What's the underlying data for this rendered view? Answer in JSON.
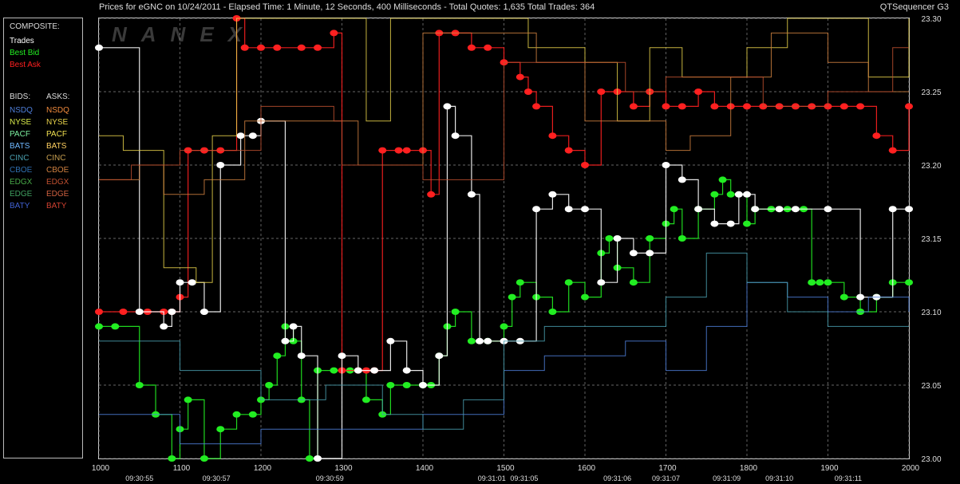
{
  "header": {
    "title": "Prices for  eGNC  on  10/24/2011  -  Elapsed Time: 1 Minute, 12 Seconds, 400 Milliseconds  -  Total Quotes: 1,635  Total Trades: 364",
    "app_name": "QTSequencer G3",
    "watermark": "NANEX"
  },
  "legend": {
    "composite_label": "COMPOSITE:",
    "trades": "Trades",
    "best_bid": "Best Bid",
    "best_ask": "Best Ask",
    "bids_label": "BIDS:",
    "asks_label": "ASKS:",
    "exchanges": [
      {
        "bid": "NSDQ",
        "ask": "NSDQ",
        "bid_color": "#4f7fd9",
        "ask_color": "#f08a3c"
      },
      {
        "bid": "NYSE",
        "ask": "NYSE",
        "bid_color": "#d7e84a",
        "ask_color": "#e8d24a"
      },
      {
        "bid": "PACF",
        "ask": "PACF",
        "bid_color": "#7cf0a0",
        "ask_color": "#f0e050"
      },
      {
        "bid": "BATS",
        "ask": "BATS",
        "bid_color": "#6fb8ff",
        "ask_color": "#ffd060"
      },
      {
        "bid": "CINC",
        "ask": "CINC",
        "bid_color": "#4aa0b0",
        "ask_color": "#c8a050"
      },
      {
        "bid": "CBOE",
        "ask": "CBOE",
        "bid_color": "#2f6fb0",
        "ask_color": "#d08040"
      },
      {
        "bid": "EDGX",
        "ask": "EDGX",
        "bid_color": "#48a848",
        "ask_color": "#c05030"
      },
      {
        "bid": "EDGE",
        "ask": "EDGE",
        "bid_color": "#40a060",
        "ask_color": "#d06040"
      },
      {
        "bid": "BATY",
        "ask": "BATY",
        "bid_color": "#4060d0",
        "ask_color": "#d04030"
      }
    ],
    "colors": {
      "trades": "#ffffff",
      "best_bid": "#22ee22",
      "best_ask": "#ff2020"
    }
  },
  "chart_data": {
    "type": "line",
    "title": "Prices for  eGNC  on  10/24/2011",
    "ylim": [
      23.0,
      23.3
    ],
    "y_ticks": [
      "23.30",
      "23.25",
      "23.20",
      "23.15",
      "23.10",
      "23.05",
      "23.00"
    ],
    "y_tick_values": [
      23.3,
      23.25,
      23.2,
      23.15,
      23.1,
      23.05,
      23.0
    ],
    "xlim": [
      1000,
      2000
    ],
    "x_ticks": [
      "1000",
      "1100",
      "1200",
      "1300",
      "1400",
      "1500",
      "1600",
      "1700",
      "1800",
      "1900",
      "2000"
    ],
    "x_tick_values": [
      1000,
      1100,
      1200,
      1300,
      1400,
      1500,
      1600,
      1700,
      1800,
      1900,
      2000
    ],
    "time_labels": [
      {
        "x": 1050,
        "label": "09:30:55"
      },
      {
        "x": 1145,
        "label": "09:30:57"
      },
      {
        "x": 1285,
        "label": "09:30:59"
      },
      {
        "x": 1485,
        "label": "09:31:01"
      },
      {
        "x": 1525,
        "label": "09:31:05"
      },
      {
        "x": 1640,
        "label": "09:31:06"
      },
      {
        "x": 1700,
        "label": "09:31:07"
      },
      {
        "x": 1775,
        "label": "09:31:09"
      },
      {
        "x": 1840,
        "label": "09:31:10"
      },
      {
        "x": 1925,
        "label": "09:31:11"
      }
    ],
    "grid": true,
    "series": [
      {
        "name": "Best Bid",
        "color": "#22ee22",
        "points": [
          [
            1000,
            23.09
          ],
          [
            1020,
            23.09
          ],
          [
            1050,
            23.05
          ],
          [
            1070,
            23.03
          ],
          [
            1090,
            23.0
          ],
          [
            1100,
            23.02
          ],
          [
            1110,
            23.04
          ],
          [
            1130,
            23.0
          ],
          [
            1150,
            23.02
          ],
          [
            1170,
            23.03
          ],
          [
            1190,
            23.03
          ],
          [
            1200,
            23.04
          ],
          [
            1210,
            23.05
          ],
          [
            1220,
            23.07
          ],
          [
            1230,
            23.09
          ],
          [
            1240,
            23.08
          ],
          [
            1250,
            23.04
          ],
          [
            1260,
            23.0
          ],
          [
            1270,
            23.06
          ],
          [
            1290,
            23.06
          ],
          [
            1310,
            23.06
          ],
          [
            1330,
            23.04
          ],
          [
            1350,
            23.03
          ],
          [
            1360,
            23.05
          ],
          [
            1380,
            23.05
          ],
          [
            1400,
            23.05
          ],
          [
            1410,
            23.05
          ],
          [
            1420,
            23.07
          ],
          [
            1430,
            23.09
          ],
          [
            1440,
            23.1
          ],
          [
            1460,
            23.08
          ],
          [
            1480,
            23.08
          ],
          [
            1500,
            23.09
          ],
          [
            1510,
            23.11
          ],
          [
            1520,
            23.12
          ],
          [
            1540,
            23.11
          ],
          [
            1560,
            23.1
          ],
          [
            1580,
            23.12
          ],
          [
            1600,
            23.11
          ],
          [
            1620,
            23.14
          ],
          [
            1630,
            23.15
          ],
          [
            1640,
            23.13
          ],
          [
            1660,
            23.12
          ],
          [
            1680,
            23.15
          ],
          [
            1700,
            23.16
          ],
          [
            1710,
            23.17
          ],
          [
            1720,
            23.15
          ],
          [
            1740,
            23.17
          ],
          [
            1760,
            23.18
          ],
          [
            1770,
            23.19
          ],
          [
            1780,
            23.18
          ],
          [
            1800,
            23.16
          ],
          [
            1810,
            23.17
          ],
          [
            1830,
            23.17
          ],
          [
            1850,
            23.17
          ],
          [
            1870,
            23.17
          ],
          [
            1880,
            23.12
          ],
          [
            1890,
            23.12
          ],
          [
            1900,
            23.12
          ],
          [
            1920,
            23.11
          ],
          [
            1940,
            23.1
          ],
          [
            1960,
            23.11
          ],
          [
            1980,
            23.12
          ],
          [
            2000,
            23.12
          ]
        ]
      },
      {
        "name": "Best Ask",
        "color": "#ff2020",
        "points": [
          [
            1000,
            23.1
          ],
          [
            1030,
            23.1
          ],
          [
            1060,
            23.1
          ],
          [
            1080,
            23.1
          ],
          [
            1090,
            23.1
          ],
          [
            1100,
            23.11
          ],
          [
            1110,
            23.21
          ],
          [
            1130,
            23.21
          ],
          [
            1150,
            23.21
          ],
          [
            1170,
            23.3
          ],
          [
            1180,
            23.28
          ],
          [
            1200,
            23.28
          ],
          [
            1220,
            23.28
          ],
          [
            1250,
            23.28
          ],
          [
            1270,
            23.28
          ],
          [
            1290,
            23.29
          ],
          [
            1300,
            23.06
          ],
          [
            1320,
            23.06
          ],
          [
            1330,
            23.06
          ],
          [
            1340,
            23.06
          ],
          [
            1350,
            23.21
          ],
          [
            1370,
            23.21
          ],
          [
            1380,
            23.21
          ],
          [
            1400,
            23.21
          ],
          [
            1410,
            23.18
          ],
          [
            1420,
            23.29
          ],
          [
            1440,
            23.29
          ],
          [
            1460,
            23.28
          ],
          [
            1480,
            23.28
          ],
          [
            1500,
            23.27
          ],
          [
            1520,
            23.26
          ],
          [
            1530,
            23.25
          ],
          [
            1540,
            23.24
          ],
          [
            1560,
            23.22
          ],
          [
            1580,
            23.21
          ],
          [
            1600,
            23.2
          ],
          [
            1620,
            23.25
          ],
          [
            1640,
            23.25
          ],
          [
            1660,
            23.24
          ],
          [
            1680,
            23.25
          ],
          [
            1700,
            23.24
          ],
          [
            1720,
            23.24
          ],
          [
            1740,
            23.25
          ],
          [
            1760,
            23.24
          ],
          [
            1780,
            23.24
          ],
          [
            1800,
            23.24
          ],
          [
            1820,
            23.24
          ],
          [
            1840,
            23.24
          ],
          [
            1860,
            23.24
          ],
          [
            1880,
            23.24
          ],
          [
            1900,
            23.24
          ],
          [
            1920,
            23.24
          ],
          [
            1940,
            23.24
          ],
          [
            1960,
            23.22
          ],
          [
            1980,
            23.21
          ],
          [
            2000,
            23.24
          ]
        ]
      },
      {
        "name": "Trades",
        "color": "#ffffff",
        "points": [
          [
            1000,
            23.28
          ],
          [
            1050,
            23.1
          ],
          [
            1080,
            23.09
          ],
          [
            1090,
            23.1
          ],
          [
            1100,
            23.12
          ],
          [
            1115,
            23.12
          ],
          [
            1130,
            23.1
          ],
          [
            1150,
            23.2
          ],
          [
            1175,
            23.22
          ],
          [
            1190,
            23.22
          ],
          [
            1200,
            23.23
          ],
          [
            1230,
            23.08
          ],
          [
            1240,
            23.09
          ],
          [
            1250,
            23.07
          ],
          [
            1270,
            23.0
          ],
          [
            1300,
            23.07
          ],
          [
            1320,
            23.06
          ],
          [
            1340,
            23.06
          ],
          [
            1360,
            23.08
          ],
          [
            1380,
            23.06
          ],
          [
            1400,
            23.05
          ],
          [
            1420,
            23.07
          ],
          [
            1430,
            23.24
          ],
          [
            1440,
            23.22
          ],
          [
            1460,
            23.18
          ],
          [
            1470,
            23.08
          ],
          [
            1480,
            23.08
          ],
          [
            1500,
            23.08
          ],
          [
            1520,
            23.08
          ],
          [
            1540,
            23.17
          ],
          [
            1560,
            23.18
          ],
          [
            1580,
            23.17
          ],
          [
            1600,
            23.17
          ],
          [
            1620,
            23.12
          ],
          [
            1640,
            23.15
          ],
          [
            1660,
            23.14
          ],
          [
            1680,
            23.14
          ],
          [
            1700,
            23.2
          ],
          [
            1720,
            23.19
          ],
          [
            1740,
            23.17
          ],
          [
            1760,
            23.16
          ],
          [
            1780,
            23.16
          ],
          [
            1790,
            23.18
          ],
          [
            1800,
            23.18
          ],
          [
            1810,
            23.17
          ],
          [
            1840,
            23.17
          ],
          [
            1860,
            23.17
          ],
          [
            1900,
            23.17
          ],
          [
            1940,
            23.11
          ],
          [
            1960,
            23.11
          ],
          [
            1980,
            23.17
          ],
          [
            2000,
            23.17
          ]
        ]
      },
      {
        "name": "NSDQ",
        "color": "#4f7fd9",
        "points": [
          [
            1000,
            23.03
          ],
          [
            1100,
            23.01
          ],
          [
            1200,
            23.02
          ],
          [
            1300,
            23.02
          ],
          [
            1400,
            23.03
          ],
          [
            1500,
            23.06
          ],
          [
            1550,
            23.07
          ],
          [
            1600,
            23.07
          ],
          [
            1650,
            23.08
          ],
          [
            1700,
            23.06
          ],
          [
            1750,
            23.09
          ],
          [
            1800,
            23.12
          ],
          [
            1850,
            23.11
          ],
          [
            1900,
            23.1
          ],
          [
            1950,
            23.11
          ],
          [
            2000,
            23.1
          ]
        ]
      },
      {
        "name": "NYSE",
        "color": "#e8d24a",
        "points": [
          [
            1000,
            23.22
          ],
          [
            1030,
            23.21
          ],
          [
            1070,
            23.21
          ],
          [
            1080,
            23.13
          ],
          [
            1120,
            23.12
          ],
          [
            1140,
            23.22
          ],
          [
            1170,
            23.3
          ],
          [
            1300,
            23.3
          ],
          [
            1330,
            23.23
          ],
          [
            1360,
            23.3
          ],
          [
            1420,
            23.3
          ],
          [
            1480,
            23.3
          ],
          [
            1530,
            23.28
          ],
          [
            1600,
            23.27
          ],
          [
            1640,
            23.23
          ],
          [
            1680,
            23.28
          ],
          [
            1720,
            23.26
          ],
          [
            1800,
            23.28
          ],
          [
            1850,
            23.3
          ],
          [
            1900,
            23.3
          ],
          [
            1950,
            23.26
          ],
          [
            2000,
            23.3
          ]
        ]
      },
      {
        "name": "CBOE",
        "color": "#d08040",
        "points": [
          [
            1000,
            23.19
          ],
          [
            1030,
            23.19
          ],
          [
            1050,
            23.2
          ],
          [
            1080,
            23.18
          ],
          [
            1130,
            23.19
          ],
          [
            1180,
            23.23
          ],
          [
            1280,
            23.23
          ],
          [
            1320,
            23.2
          ],
          [
            1400,
            23.29
          ],
          [
            1500,
            23.29
          ],
          [
            1540,
            23.27
          ],
          [
            1600,
            23.23
          ],
          [
            1650,
            23.23
          ],
          [
            1700,
            23.21
          ],
          [
            1730,
            23.22
          ],
          [
            1780,
            23.26
          ],
          [
            1830,
            23.29
          ],
          [
            1900,
            23.27
          ],
          [
            1950,
            23.25
          ],
          [
            2000,
            23.25
          ]
        ]
      },
      {
        "name": "EDGX",
        "color": "#c05030",
        "points": [
          [
            1000,
            23.19
          ],
          [
            1040,
            23.2
          ],
          [
            1100,
            23.21
          ],
          [
            1200,
            23.24
          ],
          [
            1290,
            23.23
          ],
          [
            1300,
            23.2
          ],
          [
            1400,
            23.19
          ],
          [
            1500,
            23.27
          ],
          [
            1600,
            23.27
          ],
          [
            1650,
            23.25
          ],
          [
            1700,
            23.26
          ],
          [
            1760,
            23.26
          ],
          [
            1820,
            23.24
          ],
          [
            1900,
            23.25
          ],
          [
            1980,
            23.28
          ],
          [
            2000,
            23.28
          ]
        ]
      },
      {
        "name": "CINC",
        "color": "#4aa0b0",
        "points": [
          [
            1000,
            23.08
          ],
          [
            1100,
            23.06
          ],
          [
            1200,
            23.04
          ],
          [
            1280,
            23.05
          ],
          [
            1300,
            23.05
          ],
          [
            1350,
            23.03
          ],
          [
            1400,
            23.02
          ],
          [
            1450,
            23.04
          ],
          [
            1500,
            23.08
          ],
          [
            1550,
            23.09
          ],
          [
            1650,
            23.09
          ],
          [
            1700,
            23.11
          ],
          [
            1750,
            23.14
          ],
          [
            1800,
            23.12
          ],
          [
            1850,
            23.1
          ],
          [
            1900,
            23.09
          ],
          [
            2000,
            23.09
          ]
        ]
      }
    ]
  }
}
